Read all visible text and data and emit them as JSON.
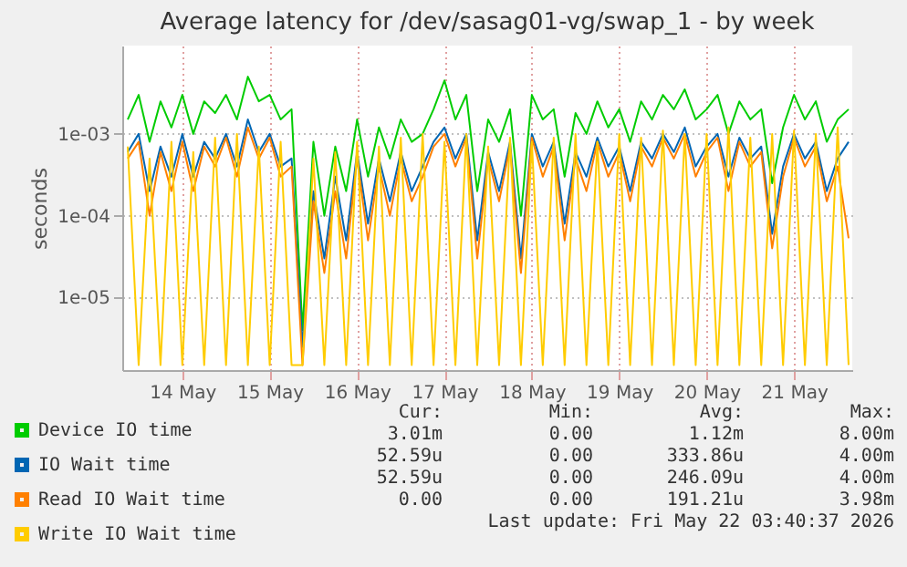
{
  "chart_data": {
    "type": "line",
    "title": "Average latency for /dev/sasag01-vg/swap_1 - by week",
    "ylabel": "seconds",
    "log": "y",
    "grid": true,
    "legend": "bottom left",
    "x": [
      "2026-05-13T09:00",
      "2026-05-13T12:00",
      "2026-05-13T15:00",
      "2026-05-13T18:00",
      "2026-05-13T21:00",
      "2026-05-14T00:00",
      "2026-05-14T03:00",
      "2026-05-14T06:00",
      "2026-05-14T09:00",
      "2026-05-14T12:00",
      "2026-05-14T15:00",
      "2026-05-14T18:00",
      "2026-05-14T21:00",
      "2026-05-15T00:00",
      "2026-05-15T03:00",
      "2026-05-15T06:00",
      "2026-05-15T09:00",
      "2026-05-15T12:00",
      "2026-05-15T15:00",
      "2026-05-15T18:00",
      "2026-05-15T21:00",
      "2026-05-16T00:00",
      "2026-05-16T03:00",
      "2026-05-16T06:00",
      "2026-05-16T09:00",
      "2026-05-16T12:00",
      "2026-05-16T15:00",
      "2026-05-16T18:00",
      "2026-05-16T21:00",
      "2026-05-17T00:00",
      "2026-05-17T03:00",
      "2026-05-17T06:00",
      "2026-05-17T09:00",
      "2026-05-17T12:00",
      "2026-05-17T15:00",
      "2026-05-17T18:00",
      "2026-05-17T21:00",
      "2026-05-18T00:00",
      "2026-05-18T03:00",
      "2026-05-18T06:00",
      "2026-05-18T09:00",
      "2026-05-18T12:00",
      "2026-05-18T15:00",
      "2026-05-18T18:00",
      "2026-05-18T21:00",
      "2026-05-19T00:00",
      "2026-05-19T03:00",
      "2026-05-19T06:00",
      "2026-05-19T09:00",
      "2026-05-19T12:00",
      "2026-05-19T15:00",
      "2026-05-19T18:00",
      "2026-05-19T21:00",
      "2026-05-20T00:00",
      "2026-05-20T03:00",
      "2026-05-20T06:00",
      "2026-05-20T09:00",
      "2026-05-20T12:00",
      "2026-05-20T15:00",
      "2026-05-20T18:00",
      "2026-05-20T21:00",
      "2026-05-21T00:00",
      "2026-05-21T03:00",
      "2026-05-21T06:00",
      "2026-05-21T09:00",
      "2026-05-21T12:00",
      "2026-05-21T15:00"
    ],
    "xlim": [
      "2026-05-13T07:30",
      "2026-05-21T16:00"
    ],
    "xticks": [
      {
        "value": "2026-05-14",
        "label": "14 May"
      },
      {
        "value": "2026-05-15",
        "label": "15 May"
      },
      {
        "value": "2026-05-16",
        "label": "16 May"
      },
      {
        "value": "2026-05-17",
        "label": "17 May"
      },
      {
        "value": "2026-05-18",
        "label": "18 May"
      },
      {
        "value": "2026-05-19",
        "label": "19 May"
      },
      {
        "value": "2026-05-20",
        "label": "20 May"
      },
      {
        "value": "2026-05-21",
        "label": "21 May"
      }
    ],
    "ylim": [
      1.3e-06,
      0.012
    ],
    "yticks": [
      {
        "value": 1e-05,
        "label": "1e-05"
      },
      {
        "value": 0.0001,
        "label": "1e-04"
      },
      {
        "value": 0.001,
        "label": "1e-03"
      }
    ],
    "series": [
      {
        "name": "Device IO time",
        "color": "#00cc00",
        "values": [
          0.0015,
          0.003,
          0.0008,
          0.0025,
          0.0012,
          0.003,
          0.001,
          0.0025,
          0.0018,
          0.003,
          0.0015,
          0.005,
          0.0025,
          0.003,
          0.0015,
          0.002,
          4e-06,
          0.0008,
          0.0001,
          0.0007,
          0.0002,
          0.0015,
          0.0003,
          0.0012,
          0.0005,
          0.0015,
          0.0008,
          0.001,
          0.002,
          0.0045,
          0.0015,
          0.003,
          0.0002,
          0.0015,
          0.0008,
          0.002,
          0.0001,
          0.003,
          0.0015,
          0.002,
          0.0003,
          0.0018,
          0.001,
          0.0025,
          0.0012,
          0.002,
          0.0008,
          0.0025,
          0.0015,
          0.003,
          0.002,
          0.0035,
          0.0015,
          0.002,
          0.003,
          0.001,
          0.0025,
          0.0015,
          0.002,
          0.00025,
          0.0012,
          0.003,
          0.0015,
          0.0025,
          0.0008,
          0.0015,
          0.002
        ]
      },
      {
        "name": "IO Wait time",
        "color": "#0066b3",
        "values": [
          0.0006,
          0.001,
          0.0002,
          0.0007,
          0.0003,
          0.001,
          0.0003,
          0.0008,
          0.0005,
          0.001,
          0.0004,
          0.0015,
          0.0006,
          0.001,
          0.0004,
          0.0005,
          2.5e-06,
          0.0002,
          3e-05,
          0.0003,
          5e-05,
          0.0006,
          8e-05,
          0.0005,
          0.00015,
          0.0006,
          0.0002,
          0.0004,
          0.0008,
          0.0012,
          0.0005,
          0.001,
          5e-05,
          0.0006,
          0.0002,
          0.0008,
          3e-05,
          0.001,
          0.0004,
          0.0008,
          8e-05,
          0.0006,
          0.0003,
          0.0009,
          0.0004,
          0.0007,
          0.0002,
          0.0008,
          0.0005,
          0.001,
          0.0006,
          0.0012,
          0.0004,
          0.0007,
          0.001,
          0.0003,
          0.0009,
          0.0005,
          0.0007,
          6e-05,
          0.0004,
          0.001,
          0.0005,
          0.0008,
          0.0002,
          0.0005,
          0.0008
        ]
      },
      {
        "name": "Read IO Wait time",
        "color": "#ff8000",
        "values": [
          0.0005,
          0.0008,
          0.0001,
          0.0006,
          0.0002,
          0.0008,
          0.0002,
          0.0007,
          0.0004,
          0.0009,
          0.0003,
          0.0012,
          0.0005,
          0.0009,
          0.0003,
          0.0004,
          1.5e-06,
          0.00015,
          2e-05,
          0.0002,
          3e-05,
          0.0005,
          5e-05,
          0.0004,
          0.0001,
          0.0005,
          0.00015,
          0.0003,
          0.0007,
          0.001,
          0.0004,
          0.0009,
          3e-05,
          0.0005,
          0.00015,
          0.0007,
          2e-05,
          0.0009,
          0.0003,
          0.0007,
          5e-05,
          0.0005,
          0.0002,
          0.0008,
          0.0003,
          0.0006,
          0.00015,
          0.0007,
          0.0004,
          0.0009,
          0.0005,
          0.001,
          0.0003,
          0.0006,
          0.0009,
          0.0002,
          0.0008,
          0.0004,
          0.0006,
          4e-05,
          0.0003,
          0.0009,
          0.0004,
          0.0007,
          0.00015,
          0.0004,
          5.3e-05
        ]
      },
      {
        "name": "Write IO Wait time",
        "color": "#ffcc00",
        "values": [
          0.0007,
          1.5e-06,
          0.0005,
          1.5e-06,
          0.0008,
          1.5e-06,
          0.0006,
          1.5e-06,
          0.0009,
          1.5e-06,
          0.001,
          1.5e-06,
          0.0007,
          1.5e-06,
          0.0008,
          1.5e-06,
          1.5e-06,
          0.0005,
          1.5e-06,
          0.0006,
          1.5e-06,
          0.0008,
          1.5e-06,
          0.0007,
          1.5e-06,
          0.0009,
          1.5e-06,
          0.001,
          1.5e-06,
          0.0008,
          1.5e-06,
          0.001,
          1.5e-06,
          0.0007,
          1.5e-06,
          0.0009,
          1.5e-06,
          0.0008,
          1.5e-06,
          0.0009,
          1.5e-06,
          0.001,
          1.5e-06,
          0.0008,
          1.5e-06,
          0.001,
          1.5e-06,
          0.0009,
          1.5e-06,
          0.0011,
          1.5e-06,
          0.001,
          1.5e-06,
          0.001,
          1.5e-06,
          0.0012,
          1.5e-06,
          0.0009,
          1.5e-06,
          0.001,
          1.5e-06,
          0.0011,
          1.5e-06,
          0.001,
          1.5e-06,
          0.0012,
          1.5e-06
        ]
      }
    ],
    "annotations": [
      "Cur:",
      "Min:",
      "Avg:",
      "Max:",
      "3.01m",
      "0.00",
      "1.12m",
      "8.00m",
      "52.59u",
      "0.00",
      "333.86u",
      "4.00m",
      "52.59u",
      "0.00",
      "246.09u",
      "4.00m",
      "0.00",
      "0.00",
      "191.21u",
      "3.98m",
      "Last update: Fri May 22 03:40:37 2026"
    ]
  }
}
